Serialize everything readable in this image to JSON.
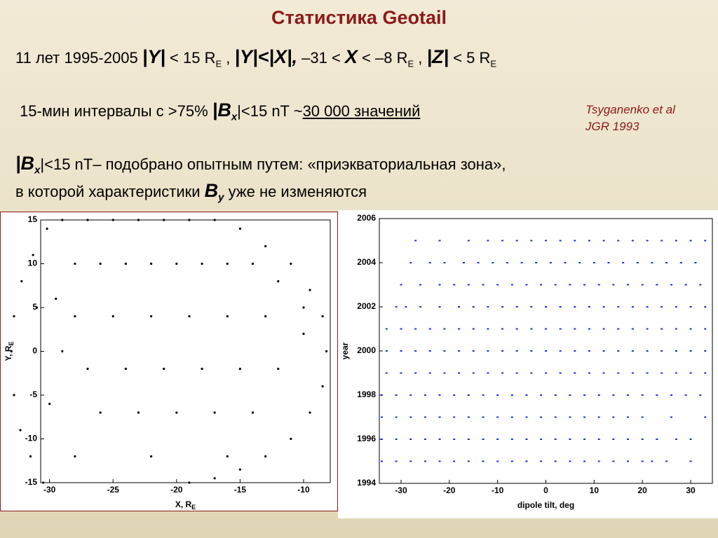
{
  "header": {
    "title": "Статистика Geotail",
    "line1": [
      "11 лет  1995-2005  ",
      "|Y|",
      " < 15 R",
      "E",
      " , ",
      "|Y|<|X|,",
      "  –31 < ",
      "X",
      " < –8 R",
      "E",
      " , ",
      "|Z|",
      " < 5 R",
      "E"
    ],
    "line2": [
      "15-мин интервалы с  >75% ",
      "|B",
      "x",
      "|<15 nT",
      "    ~",
      "30 000 значений"
    ],
    "citation": [
      "Tsyganenko et al",
      "JGR 1993"
    ],
    "line3": [
      "|B",
      "x",
      "|<15 nT– подобрано опытным путем: «приэкваториальная зона»,"
    ],
    "line4": [
      "в которой характеристики ",
      "B",
      "y",
      " уже не изменяются"
    ]
  },
  "chart_data": [
    {
      "type": "scatter",
      "xlabel": "X, R",
      "xlabel_sub": "E",
      "ylabel": "Y, R",
      "ylabel_sub": "E",
      "color": "#000000",
      "xlim": [
        -30.7,
        -7.9
      ],
      "ylim": [
        -15,
        15
      ],
      "xticks": [
        -30,
        -25,
        -20,
        -15,
        -10
      ],
      "yticks": [
        -15,
        -10,
        -5,
        0,
        5,
        10,
        15
      ],
      "x": [
        -30.5,
        -31.5,
        -32.3,
        -32.8,
        -33,
        -32.8,
        -32.2,
        -31.3,
        -30.2,
        -29,
        -27,
        -25,
        -23,
        -21,
        -19,
        -17,
        -15,
        -13,
        -11,
        -9.5,
        -8.5,
        -8.2,
        -8.5,
        -9.5,
        -11,
        -13,
        -15,
        -17,
        -19,
        -28,
        -26,
        -24,
        -22,
        -20,
        -18,
        -16,
        -14,
        -12,
        -10,
        -28,
        -25,
        -22,
        -19,
        -16,
        -13,
        -10,
        -27,
        -24,
        -21,
        -18,
        -15,
        -12,
        -26,
        -23,
        -20,
        -17,
        -14,
        -28,
        -22,
        -16,
        -30,
        -29,
        -31,
        -29.5
      ],
      "y": [
        -15,
        -12,
        -9,
        -5,
        0,
        4,
        8,
        11,
        14,
        15,
        15,
        15,
        15,
        15,
        15,
        15,
        14,
        12,
        10,
        7,
        4,
        0,
        -4,
        -7,
        -10,
        -12,
        -13.5,
        -14.5,
        -15,
        10,
        10,
        10,
        10,
        10,
        10,
        10,
        10,
        8,
        5,
        4,
        4,
        4,
        4,
        4,
        4,
        2,
        -2,
        -2,
        -2,
        -2,
        -2,
        -2,
        -7,
        -7,
        -7,
        -7,
        -7,
        -12,
        -12,
        -12,
        -6,
        0,
        5,
        6
      ]
    },
    {
      "type": "scatter",
      "xlabel": "dipole tilt, deg",
      "ylabel": "year",
      "color": "#1f2fd6",
      "xlim": [
        -34.5,
        34.5
      ],
      "ylim": [
        1994,
        2006
      ],
      "xticks": [
        -30,
        -20,
        -10,
        0,
        10,
        20,
        30
      ],
      "yticks": [
        1994,
        1996,
        1998,
        2000,
        2002,
        2004,
        2006
      ],
      "rows": [
        {
          "y": 1995,
          "x": [
            -34,
            -31,
            -28,
            -25,
            -22,
            -19,
            -16,
            -13,
            -10,
            -7,
            -4,
            -1,
            2,
            5,
            8,
            11,
            14,
            17,
            20,
            22,
            25,
            30
          ]
        },
        {
          "y": 1996,
          "x": [
            -34,
            -31,
            -28,
            -25,
            -22,
            -19,
            -16,
            -13,
            -10,
            -7,
            -4,
            -1,
            2,
            5,
            8,
            11,
            14,
            17,
            20,
            23,
            27,
            30
          ]
        },
        {
          "y": 1997,
          "x": [
            -34,
            -31,
            -28,
            -25,
            -22,
            -19,
            -16,
            -13,
            -10,
            -7,
            -4,
            -1,
            2,
            5,
            8,
            11,
            14,
            17,
            20,
            26,
            33
          ]
        },
        {
          "y": 1998,
          "x": [
            -34,
            -31,
            -28,
            -25,
            -22,
            -19,
            -16,
            -13,
            -10,
            -7,
            -4,
            -1,
            2,
            5,
            8,
            11,
            14,
            17,
            20,
            23,
            26,
            29,
            32
          ]
        },
        {
          "y": 1999,
          "x": [
            -33,
            -30,
            -27,
            -24,
            -21,
            -18,
            -15,
            -12,
            -9,
            -6,
            -3,
            0,
            3,
            6,
            9,
            12,
            15,
            18,
            21,
            24,
            27,
            30,
            33
          ]
        },
        {
          "y": 2000,
          "x": [
            -33,
            -30,
            -27,
            -24,
            -21,
            -18,
            -15,
            -12,
            -9,
            -6,
            -3,
            0,
            3,
            6,
            9,
            12,
            15,
            18,
            21,
            24,
            27,
            30,
            33
          ]
        },
        {
          "y": 2001,
          "x": [
            -33,
            -30,
            -27,
            -24,
            -21,
            -18,
            -15,
            -12,
            -9,
            -6,
            -3,
            0,
            3,
            6,
            9,
            12,
            15,
            18,
            21,
            24,
            27,
            30,
            33
          ]
        },
        {
          "y": 2002,
          "x": [
            -31,
            -29,
            -26,
            -22,
            -18,
            -15,
            -12,
            -9,
            -6,
            -3,
            0,
            3,
            6,
            9,
            12,
            15,
            18,
            21,
            24,
            27,
            30,
            33
          ]
        },
        {
          "y": 2003,
          "x": [
            -30,
            -26,
            -22,
            -19,
            -16,
            -13,
            -10,
            -7,
            -4,
            -1,
            2,
            5,
            8,
            11,
            14,
            17,
            20,
            23,
            26,
            29,
            32
          ]
        },
        {
          "y": 2004,
          "x": [
            -28,
            -24,
            -21,
            -17,
            -14,
            -11,
            -8,
            -5,
            -2,
            1,
            4,
            7,
            10,
            13,
            16,
            19,
            22,
            25,
            28,
            31
          ]
        },
        {
          "y": 2005,
          "x": [
            -27,
            -22,
            -16,
            -12,
            -9,
            -6,
            -3,
            0,
            3,
            6,
            9,
            12,
            15,
            18,
            21,
            24,
            27,
            30,
            33
          ]
        }
      ]
    }
  ]
}
